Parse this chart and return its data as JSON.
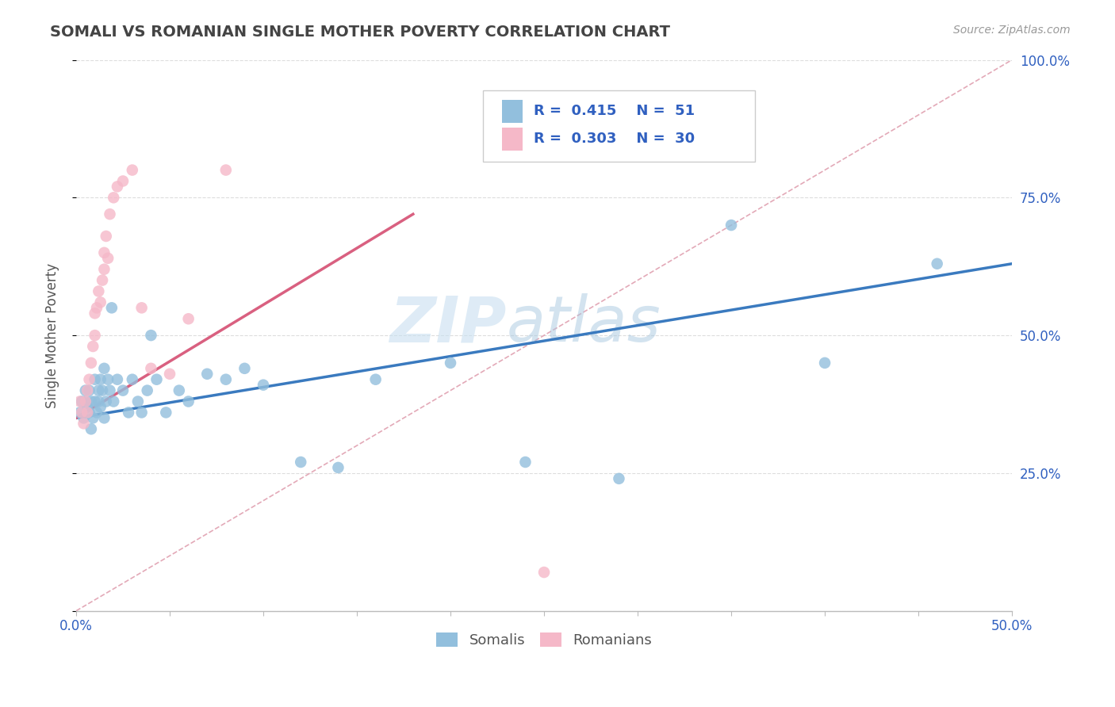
{
  "title": "SOMALI VS ROMANIAN SINGLE MOTHER POVERTY CORRELATION CHART",
  "source": "Source: ZipAtlas.com",
  "ylabel": "Single Mother Poverty",
  "xlim": [
    0.0,
    0.5
  ],
  "ylim": [
    0.0,
    1.0
  ],
  "somali_R": 0.415,
  "somali_N": 51,
  "romanian_R": 0.303,
  "romanian_N": 30,
  "somali_color": "#92bfdd",
  "romanian_color": "#f5b8c8",
  "somali_line_color": "#3a7abf",
  "romanian_line_color": "#d96080",
  "diagonal_color": "#e0a0b0",
  "background_color": "#ffffff",
  "grid_color": "#dddddd",
  "watermark_zip": "ZIP",
  "watermark_atlas": "atlas",
  "title_color": "#444444",
  "legend_text_color": "#3060c0",
  "tick_color": "#3060c0",
  "somali_x": [
    0.002,
    0.003,
    0.004,
    0.005,
    0.005,
    0.006,
    0.007,
    0.007,
    0.008,
    0.008,
    0.009,
    0.01,
    0.01,
    0.011,
    0.012,
    0.012,
    0.013,
    0.013,
    0.014,
    0.015,
    0.015,
    0.016,
    0.017,
    0.018,
    0.019,
    0.02,
    0.022,
    0.025,
    0.028,
    0.03,
    0.033,
    0.035,
    0.038,
    0.04,
    0.043,
    0.048,
    0.055,
    0.06,
    0.07,
    0.08,
    0.09,
    0.1,
    0.12,
    0.14,
    0.16,
    0.2,
    0.24,
    0.29,
    0.35,
    0.4,
    0.46
  ],
  "somali_y": [
    0.36,
    0.38,
    0.35,
    0.38,
    0.4,
    0.37,
    0.36,
    0.4,
    0.33,
    0.38,
    0.35,
    0.38,
    0.42,
    0.36,
    0.4,
    0.38,
    0.37,
    0.42,
    0.4,
    0.35,
    0.44,
    0.38,
    0.42,
    0.4,
    0.55,
    0.38,
    0.42,
    0.4,
    0.36,
    0.42,
    0.38,
    0.36,
    0.4,
    0.5,
    0.42,
    0.36,
    0.4,
    0.38,
    0.43,
    0.42,
    0.44,
    0.41,
    0.27,
    0.26,
    0.42,
    0.45,
    0.27,
    0.24,
    0.7,
    0.45,
    0.63
  ],
  "romanian_x": [
    0.002,
    0.003,
    0.004,
    0.005,
    0.006,
    0.006,
    0.007,
    0.008,
    0.009,
    0.01,
    0.01,
    0.011,
    0.012,
    0.013,
    0.014,
    0.015,
    0.015,
    0.016,
    0.017,
    0.018,
    0.02,
    0.022,
    0.025,
    0.03,
    0.035,
    0.04,
    0.05,
    0.06,
    0.08,
    0.25
  ],
  "romanian_y": [
    0.38,
    0.36,
    0.34,
    0.38,
    0.4,
    0.36,
    0.42,
    0.45,
    0.48,
    0.5,
    0.54,
    0.55,
    0.58,
    0.56,
    0.6,
    0.62,
    0.65,
    0.68,
    0.64,
    0.72,
    0.75,
    0.77,
    0.78,
    0.8,
    0.55,
    0.44,
    0.43,
    0.53,
    0.8,
    0.07
  ],
  "somali_line_x": [
    0.0,
    0.5
  ],
  "somali_line_y": [
    0.35,
    0.63
  ],
  "romanian_line_x": [
    0.0,
    0.18
  ],
  "romanian_line_y": [
    0.35,
    0.72
  ]
}
